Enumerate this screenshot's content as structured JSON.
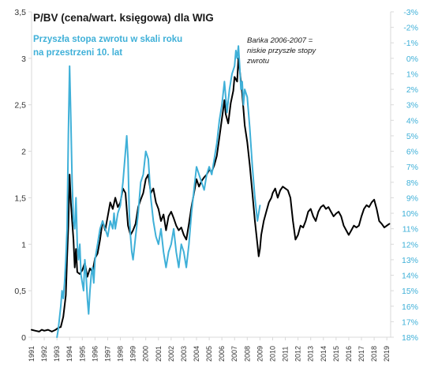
{
  "chart_data": {
    "type": "line",
    "title": "P/BV (cena/wart. księgowa) dla WIG",
    "subtitle_line1": "Przyszła stopa zwrotu w skali roku",
    "subtitle_line2": "na przestrzeni 10. lat",
    "annotation_line1": "Bańka 2006-2007 =",
    "annotation_line2": "niskie przyszłe stopy",
    "annotation_line3": "zwrotu",
    "colors": {
      "pbv": "#000000",
      "future_return": "#3fb0d8",
      "axis": "#d9d9d9"
    },
    "x_ticks": [
      "1991",
      "1992",
      "1993",
      "1994",
      "1995",
      "1996",
      "1997",
      "1998",
      "1999",
      "2000",
      "2001",
      "2002",
      "2003",
      "2004",
      "2005",
      "2006",
      "2007",
      "2008",
      "2009",
      "2010",
      "2011",
      "2012",
      "2013",
      "2014",
      "2015",
      "2016",
      "2017",
      "2018",
      "2019"
    ],
    "xlim": [
      1991,
      2019.3
    ],
    "y_left_ticks": [
      "0",
      "0,5",
      "1",
      "1,5",
      "2",
      "2,5",
      "3",
      "3,5"
    ],
    "y_left_lim": [
      0,
      3.5
    ],
    "y_right_ticks": [
      "-3%",
      "-2%",
      "-1%",
      "0%",
      "1%",
      "2%",
      "3%",
      "4%",
      "5%",
      "6%",
      "7%",
      "8%",
      "9%",
      "10%",
      "11%",
      "12%",
      "13%",
      "14%",
      "15%",
      "16%",
      "17%",
      "18%"
    ],
    "y_right_lim": [
      -3,
      18
    ],
    "y_right_inverted": true,
    "grid": false,
    "series": [
      {
        "id": "pbv",
        "axis": "left",
        "points": [
          [
            1991.0,
            0.08
          ],
          [
            1991.3,
            0.07
          ],
          [
            1991.6,
            0.06
          ],
          [
            1991.8,
            0.08
          ],
          [
            1992.0,
            0.07
          ],
          [
            1992.3,
            0.08
          ],
          [
            1992.6,
            0.06
          ],
          [
            1992.9,
            0.08
          ],
          [
            1993.1,
            0.1
          ],
          [
            1993.3,
            0.11
          ],
          [
            1993.5,
            0.22
          ],
          [
            1993.7,
            0.45
          ],
          [
            1993.8,
            0.85
          ],
          [
            1993.9,
            1.2
          ],
          [
            1994.0,
            1.75
          ],
          [
            1994.1,
            1.45
          ],
          [
            1994.2,
            1.25
          ],
          [
            1994.3,
            1.05
          ],
          [
            1994.4,
            0.75
          ],
          [
            1994.5,
            0.95
          ],
          [
            1994.6,
            0.7
          ],
          [
            1994.8,
            0.68
          ],
          [
            1995.0,
            0.72
          ],
          [
            1995.2,
            0.8
          ],
          [
            1995.4,
            0.65
          ],
          [
            1995.6,
            0.74
          ],
          [
            1995.8,
            0.7
          ],
          [
            1996.0,
            0.85
          ],
          [
            1996.2,
            0.9
          ],
          [
            1996.4,
            1.05
          ],
          [
            1996.6,
            1.25
          ],
          [
            1996.8,
            1.15
          ],
          [
            1997.0,
            1.3
          ],
          [
            1997.2,
            1.45
          ],
          [
            1997.4,
            1.38
          ],
          [
            1997.6,
            1.5
          ],
          [
            1997.8,
            1.4
          ],
          [
            1998.0,
            1.45
          ],
          [
            1998.2,
            1.6
          ],
          [
            1998.4,
            1.55
          ],
          [
            1998.6,
            1.2
          ],
          [
            1998.8,
            1.1
          ],
          [
            1999.0,
            1.15
          ],
          [
            1999.2,
            1.22
          ],
          [
            1999.4,
            1.4
          ],
          [
            1999.6,
            1.48
          ],
          [
            1999.8,
            1.55
          ],
          [
            2000.0,
            1.7
          ],
          [
            2000.2,
            1.75
          ],
          [
            2000.4,
            1.55
          ],
          [
            2000.6,
            1.6
          ],
          [
            2000.8,
            1.45
          ],
          [
            2001.0,
            1.38
          ],
          [
            2001.2,
            1.25
          ],
          [
            2001.4,
            1.32
          ],
          [
            2001.6,
            1.15
          ],
          [
            2001.8,
            1.3
          ],
          [
            2002.0,
            1.35
          ],
          [
            2002.2,
            1.28
          ],
          [
            2002.4,
            1.2
          ],
          [
            2002.6,
            1.15
          ],
          [
            2002.8,
            1.18
          ],
          [
            2003.0,
            1.1
          ],
          [
            2003.2,
            1.05
          ],
          [
            2003.4,
            1.22
          ],
          [
            2003.6,
            1.4
          ],
          [
            2003.8,
            1.55
          ],
          [
            2004.0,
            1.7
          ],
          [
            2004.2,
            1.62
          ],
          [
            2004.4,
            1.68
          ],
          [
            2004.6,
            1.72
          ],
          [
            2004.8,
            1.75
          ],
          [
            2005.0,
            1.8
          ],
          [
            2005.2,
            1.78
          ],
          [
            2005.4,
            1.85
          ],
          [
            2005.6,
            1.95
          ],
          [
            2005.8,
            2.15
          ],
          [
            2006.0,
            2.35
          ],
          [
            2006.2,
            2.55
          ],
          [
            2006.3,
            2.4
          ],
          [
            2006.5,
            2.3
          ],
          [
            2006.7,
            2.52
          ],
          [
            2006.9,
            2.65
          ],
          [
            2007.0,
            2.8
          ],
          [
            2007.2,
            2.75
          ],
          [
            2007.3,
            3.0
          ],
          [
            2007.4,
            2.88
          ],
          [
            2007.6,
            2.62
          ],
          [
            2007.7,
            2.45
          ],
          [
            2007.8,
            2.28
          ],
          [
            2008.0,
            2.1
          ],
          [
            2008.2,
            1.85
          ],
          [
            2008.4,
            1.55
          ],
          [
            2008.6,
            1.25
          ],
          [
            2008.8,
            1.0
          ],
          [
            2008.9,
            0.87
          ],
          [
            2009.0,
            0.95
          ],
          [
            2009.1,
            1.1
          ],
          [
            2009.3,
            1.25
          ],
          [
            2009.5,
            1.35
          ],
          [
            2009.7,
            1.45
          ],
          [
            2009.9,
            1.5
          ],
          [
            2010.0,
            1.55
          ],
          [
            2010.2,
            1.6
          ],
          [
            2010.4,
            1.5
          ],
          [
            2010.6,
            1.58
          ],
          [
            2010.8,
            1.62
          ],
          [
            2011.0,
            1.6
          ],
          [
            2011.2,
            1.58
          ],
          [
            2011.4,
            1.5
          ],
          [
            2011.6,
            1.25
          ],
          [
            2011.8,
            1.05
          ],
          [
            2012.0,
            1.1
          ],
          [
            2012.2,
            1.2
          ],
          [
            2012.4,
            1.18
          ],
          [
            2012.6,
            1.25
          ],
          [
            2012.8,
            1.35
          ],
          [
            2013.0,
            1.38
          ],
          [
            2013.2,
            1.3
          ],
          [
            2013.4,
            1.25
          ],
          [
            2013.6,
            1.35
          ],
          [
            2013.8,
            1.4
          ],
          [
            2014.0,
            1.42
          ],
          [
            2014.2,
            1.38
          ],
          [
            2014.4,
            1.4
          ],
          [
            2014.6,
            1.35
          ],
          [
            2014.8,
            1.3
          ],
          [
            2015.0,
            1.33
          ],
          [
            2015.2,
            1.35
          ],
          [
            2015.4,
            1.3
          ],
          [
            2015.6,
            1.2
          ],
          [
            2015.8,
            1.15
          ],
          [
            2016.0,
            1.1
          ],
          [
            2016.2,
            1.15
          ],
          [
            2016.4,
            1.2
          ],
          [
            2016.6,
            1.18
          ],
          [
            2016.8,
            1.2
          ],
          [
            2017.0,
            1.3
          ],
          [
            2017.2,
            1.38
          ],
          [
            2017.4,
            1.42
          ],
          [
            2017.6,
            1.4
          ],
          [
            2017.8,
            1.45
          ],
          [
            2018.0,
            1.48
          ],
          [
            2018.2,
            1.38
          ],
          [
            2018.4,
            1.25
          ],
          [
            2018.6,
            1.22
          ],
          [
            2018.8,
            1.18
          ],
          [
            2019.0,
            1.2
          ],
          [
            2019.2,
            1.22
          ]
        ]
      },
      {
        "id": "future_return",
        "axis": "right",
        "points": [
          [
            1993.0,
            18.0
          ],
          [
            1993.1,
            17.5
          ],
          [
            1993.3,
            16.0
          ],
          [
            1993.4,
            15.0
          ],
          [
            1993.5,
            15.5
          ],
          [
            1993.6,
            14.5
          ],
          [
            1993.7,
            13.0
          ],
          [
            1993.8,
            11.0
          ],
          [
            1993.9,
            5.0
          ],
          [
            1994.0,
            0.5
          ],
          [
            1994.1,
            4.0
          ],
          [
            1994.2,
            8.0
          ],
          [
            1994.3,
            10.5
          ],
          [
            1994.4,
            11.0
          ],
          [
            1994.5,
            9.0
          ],
          [
            1994.6,
            12.0
          ],
          [
            1994.7,
            13.0
          ],
          [
            1994.8,
            12.0
          ],
          [
            1994.9,
            14.0
          ],
          [
            1995.0,
            14.5
          ],
          [
            1995.1,
            15.0
          ],
          [
            1995.2,
            13.0
          ],
          [
            1995.3,
            14.0
          ],
          [
            1995.4,
            15.5
          ],
          [
            1995.5,
            16.5
          ],
          [
            1995.6,
            15.0
          ],
          [
            1995.7,
            14.0
          ],
          [
            1995.8,
            13.5
          ],
          [
            1995.9,
            14.5
          ],
          [
            1996.0,
            13.0
          ],
          [
            1996.2,
            12.0
          ],
          [
            1996.4,
            11.0
          ],
          [
            1996.6,
            10.5
          ],
          [
            1996.8,
            11.0
          ],
          [
            1997.0,
            11.5
          ],
          [
            1997.2,
            10.5
          ],
          [
            1997.4,
            11.0
          ],
          [
            1997.5,
            10.0
          ],
          [
            1997.6,
            11.0
          ],
          [
            1997.8,
            10.0
          ],
          [
            1998.0,
            9.5
          ],
          [
            1998.2,
            8.0
          ],
          [
            1998.4,
            6.0
          ],
          [
            1998.5,
            5.0
          ],
          [
            1998.6,
            6.5
          ],
          [
            1998.7,
            10.0
          ],
          [
            1998.8,
            11.5
          ],
          [
            1998.9,
            12.5
          ],
          [
            1999.0,
            13.0
          ],
          [
            1999.2,
            11.5
          ],
          [
            1999.4,
            10.0
          ],
          [
            1999.6,
            8.0
          ],
          [
            1999.8,
            7.5
          ],
          [
            2000.0,
            6.0
          ],
          [
            2000.2,
            6.5
          ],
          [
            2000.4,
            9.0
          ],
          [
            2000.6,
            10.5
          ],
          [
            2000.8,
            11.5
          ],
          [
            2001.0,
            12.0
          ],
          [
            2001.2,
            11.0
          ],
          [
            2001.4,
            12.5
          ],
          [
            2001.6,
            13.5
          ],
          [
            2001.8,
            12.5
          ],
          [
            2002.0,
            12.0
          ],
          [
            2002.2,
            11.0
          ],
          [
            2002.4,
            12.5
          ],
          [
            2002.6,
            13.5
          ],
          [
            2002.8,
            12.0
          ],
          [
            2003.0,
            12.5
          ],
          [
            2003.2,
            13.5
          ],
          [
            2003.4,
            12.0
          ],
          [
            2003.6,
            10.0
          ],
          [
            2003.8,
            8.5
          ],
          [
            2004.0,
            7.0
          ],
          [
            2004.2,
            7.5
          ],
          [
            2004.4,
            8.0
          ],
          [
            2004.6,
            8.5
          ],
          [
            2004.8,
            7.5
          ],
          [
            2005.0,
            7.0
          ],
          [
            2005.2,
            7.5
          ],
          [
            2005.4,
            6.5
          ],
          [
            2005.6,
            5.5
          ],
          [
            2005.8,
            4.0
          ],
          [
            2006.0,
            3.0
          ],
          [
            2006.2,
            1.5
          ],
          [
            2006.3,
            2.5
          ],
          [
            2006.4,
            3.5
          ],
          [
            2006.6,
            2.0
          ],
          [
            2006.8,
            1.0
          ],
          [
            2007.0,
            0.5
          ],
          [
            2007.1,
            -0.5
          ],
          [
            2007.2,
            0.0
          ],
          [
            2007.3,
            -0.8
          ],
          [
            2007.4,
            0.5
          ],
          [
            2007.5,
            2.0
          ],
          [
            2007.6,
            1.5
          ],
          [
            2007.7,
            3.0
          ],
          [
            2007.8,
            2.0
          ],
          [
            2008.0,
            2.5
          ],
          [
            2008.2,
            4.5
          ],
          [
            2008.4,
            7.0
          ],
          [
            2008.6,
            9.0
          ],
          [
            2008.8,
            10.5
          ],
          [
            2009.0,
            9.5
          ]
        ]
      }
    ]
  }
}
